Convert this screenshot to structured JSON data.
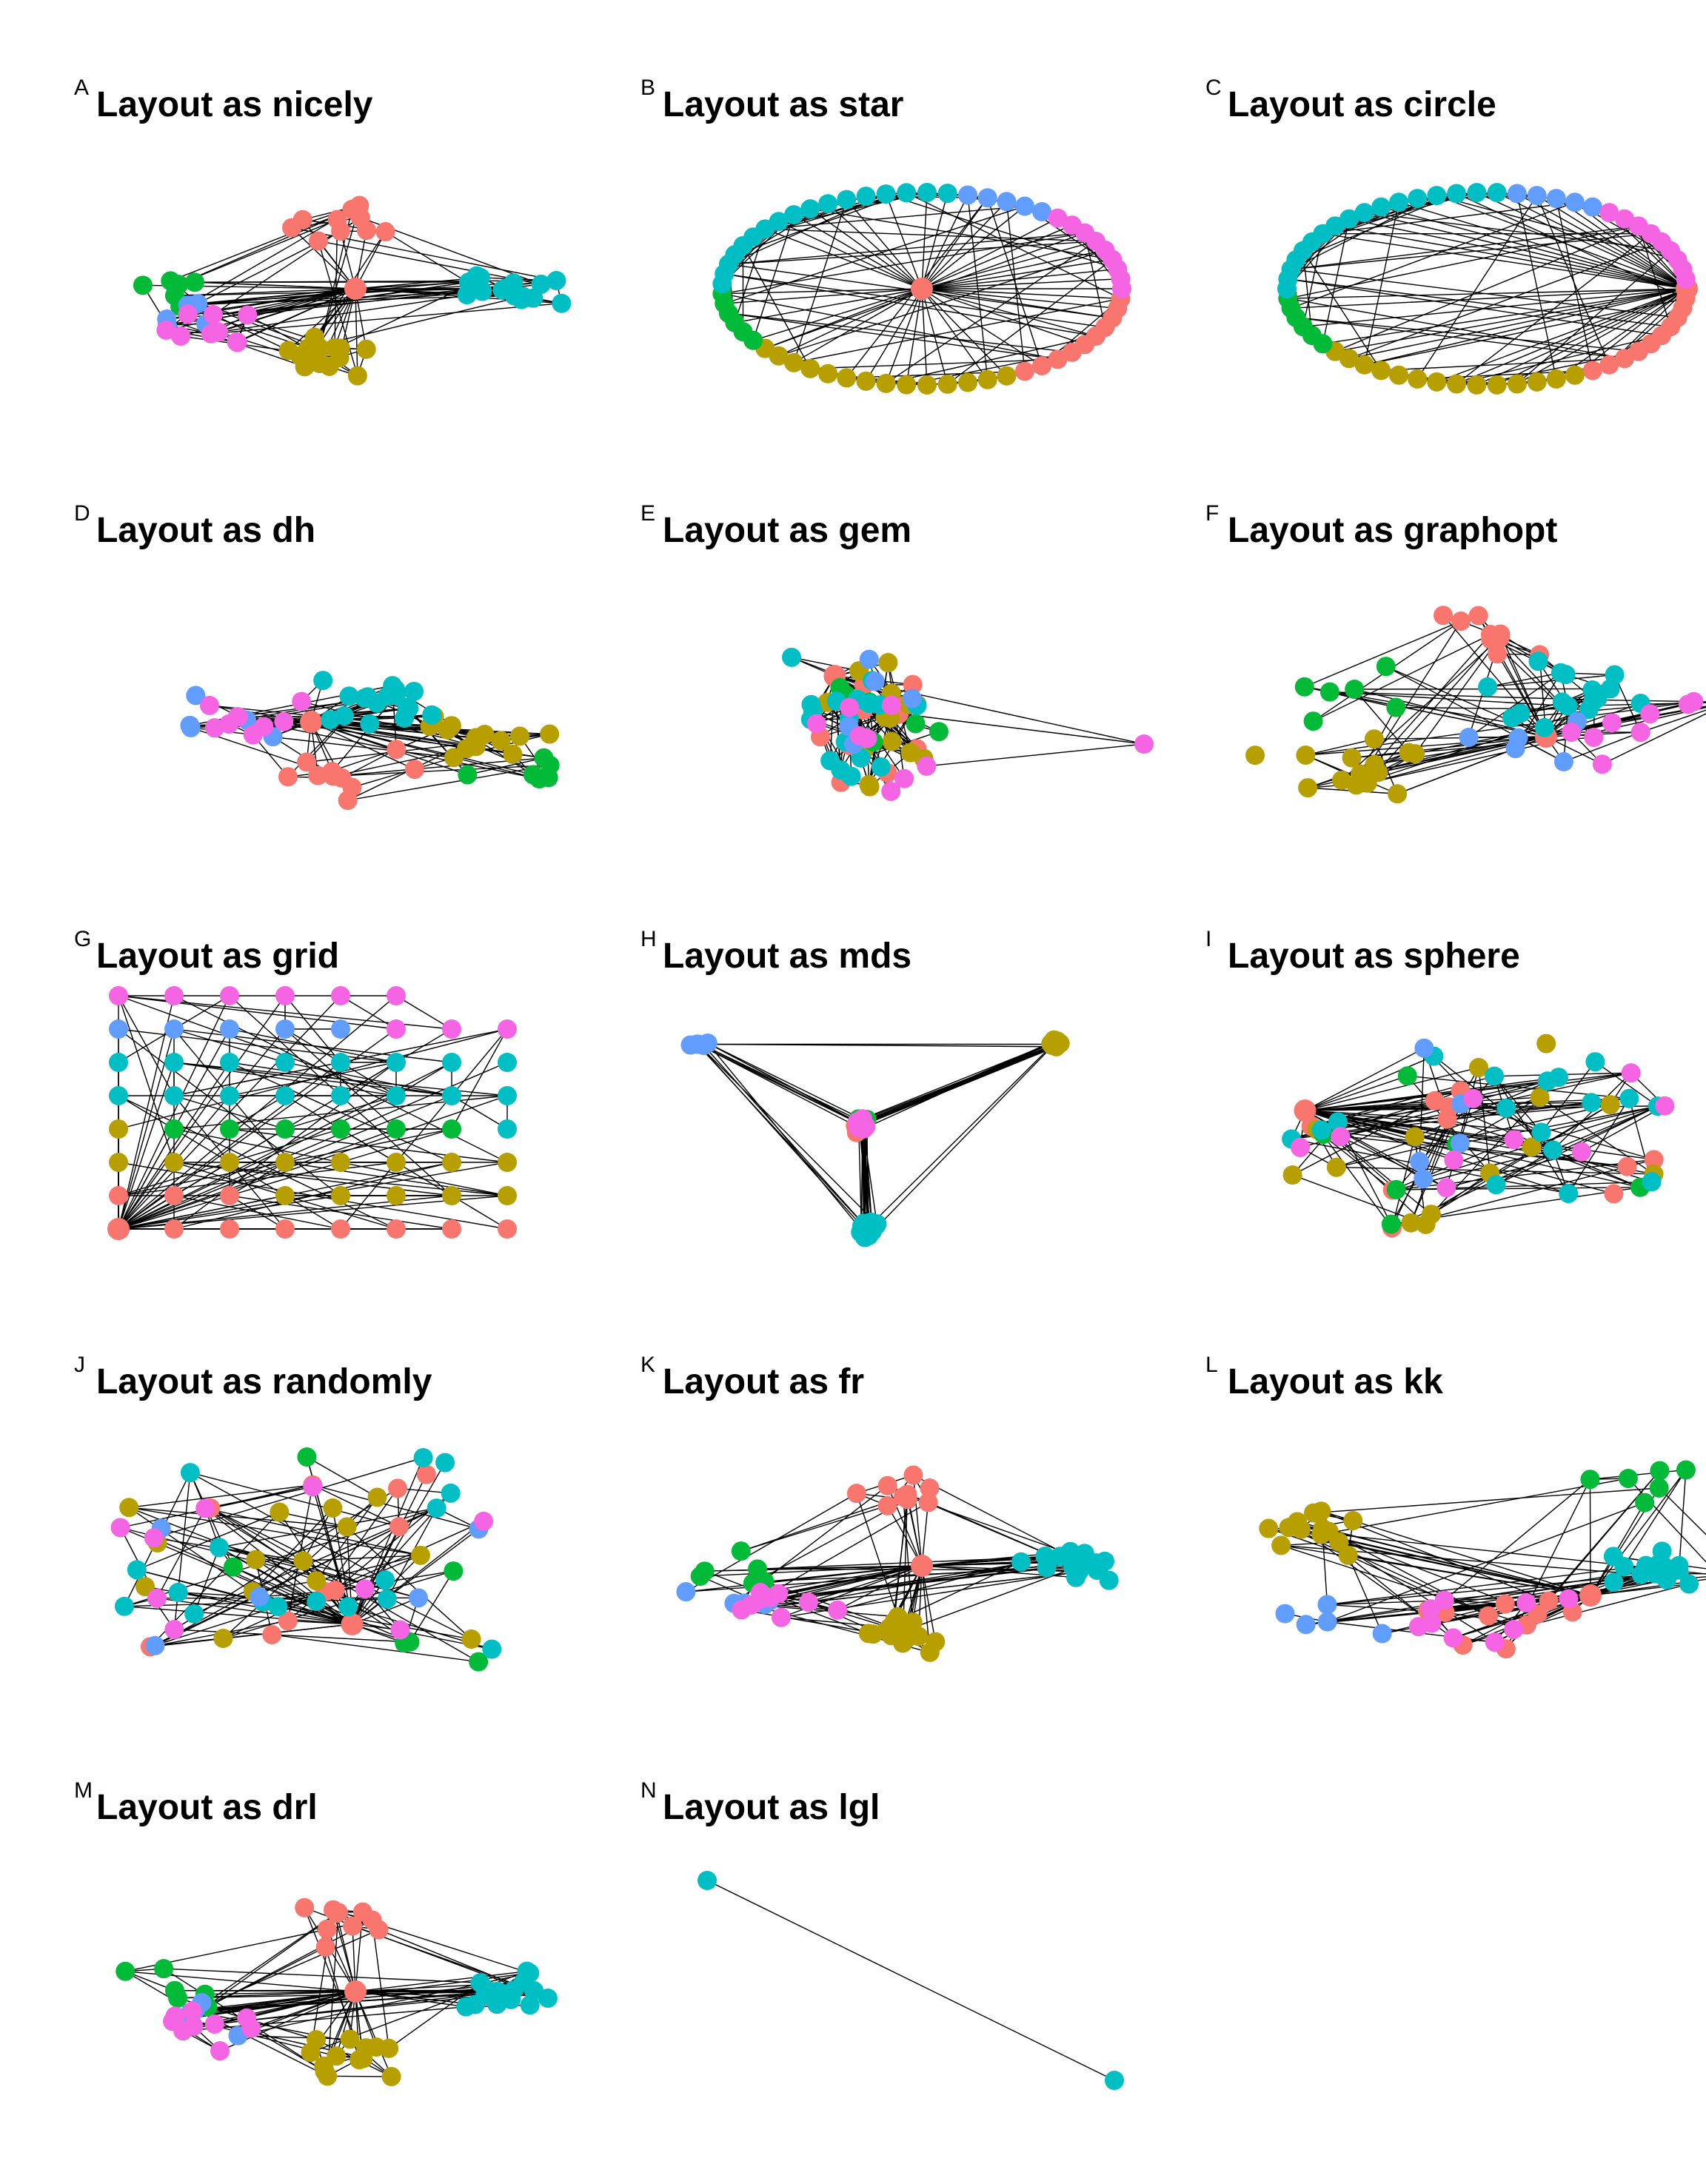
{
  "colors": {
    "edge": "#000000",
    "node_palette": [
      "#f8766d",
      "#b79f00",
      "#00ba38",
      "#00bfc4",
      "#619cff",
      "#f564e3"
    ],
    "node_palette_names": [
      "salmon",
      "olive",
      "green",
      "teal",
      "blue",
      "pink"
    ]
  },
  "panels": [
    {
      "letter": "A",
      "title": "Layout as nicely",
      "layout": "nicely"
    },
    {
      "letter": "B",
      "title": "Layout as star",
      "layout": "star"
    },
    {
      "letter": "C",
      "title": "Layout as circle",
      "layout": "circle"
    },
    {
      "letter": "D",
      "title": "Layout as dh",
      "layout": "dh"
    },
    {
      "letter": "E",
      "title": "Layout as gem",
      "layout": "gem"
    },
    {
      "letter": "F",
      "title": "Layout as graphopt",
      "layout": "graphopt"
    },
    {
      "letter": "G",
      "title": "Layout as grid",
      "layout": "grid"
    },
    {
      "letter": "H",
      "title": "Layout as mds",
      "layout": "mds"
    },
    {
      "letter": "I",
      "title": "Layout as sphere",
      "layout": "sphere"
    },
    {
      "letter": "J",
      "title": "Layout as randomly",
      "layout": "randomly"
    },
    {
      "letter": "K",
      "title": "Layout as fr",
      "layout": "fr"
    },
    {
      "letter": "L",
      "title": "Layout as kk",
      "layout": "kk"
    },
    {
      "letter": "M",
      "title": "Layout as drl",
      "layout": "drl"
    },
    {
      "letter": "N",
      "title": "Layout as lgl",
      "layout": "lgl"
    }
  ]
}
